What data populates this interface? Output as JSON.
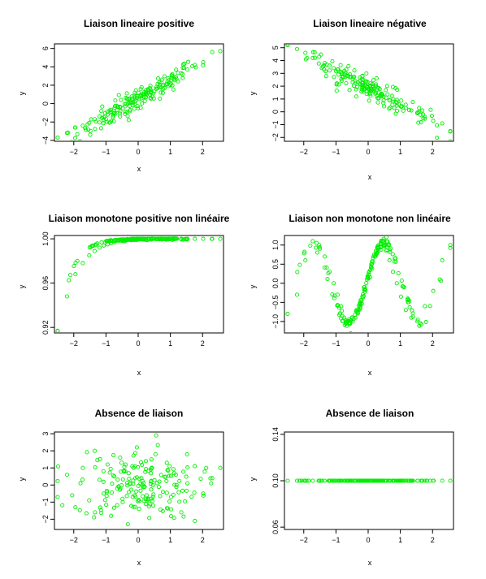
{
  "figure": {
    "point_color": "#00ee00",
    "background": "#ffffff"
  },
  "chart_data": [
    {
      "type": "scatter",
      "title": "Liaison lineaire positive",
      "xlabel": "x",
      "ylabel": "y",
      "xlim": [
        -2.6,
        2.65
      ],
      "ylim": [
        -4.1,
        6.5
      ],
      "xticks": [
        -2,
        -1,
        0,
        1,
        2
      ],
      "yticks": [
        -4,
        -2,
        0,
        2,
        4,
        6
      ],
      "relation": "linear",
      "params": {
        "slope": 2.0,
        "intercept": 0.5,
        "noise": 0.65
      },
      "x": [
        -2.5,
        -2.21,
        -1.95,
        -1.72,
        -1.52,
        -1.35,
        -1.2,
        -1.07,
        -0.95,
        -0.84,
        -0.74,
        -0.65,
        -0.56,
        -0.48,
        -0.4,
        -0.32,
        -0.25,
        -0.18,
        -0.11,
        -0.04,
        0.03,
        0.1,
        0.17,
        0.24,
        0.31,
        0.39,
        0.47,
        0.56,
        0.66,
        0.77,
        0.89,
        1.02,
        1.17,
        1.34,
        1.53,
        1.76,
        2.02,
        2.3,
        2.55
      ],
      "y": [
        -3.7,
        -3.2,
        -2.6,
        -2.4,
        -2.1,
        -1.7,
        -1.4,
        -1.5,
        -1.2,
        -0.9,
        -1.0,
        -0.7,
        -0.4,
        -0.5,
        -0.3,
        0.0,
        0.1,
        0.4,
        0.2,
        0.6,
        0.5,
        0.8,
        1.0,
        0.7,
        1.2,
        1.3,
        1.1,
        1.6,
        1.8,
        2.0,
        2.1,
        2.5,
        2.9,
        3.3,
        3.7,
        4.2,
        4.5,
        5.6,
        5.7
      ]
    },
    {
      "type": "scatter",
      "title": "Liaison lineaire négative",
      "xlabel": "x",
      "ylabel": "y",
      "xlim": [
        -2.6,
        2.65
      ],
      "ylim": [
        -2.3,
        5.3
      ],
      "xticks": [
        -2,
        -1,
        0,
        1,
        2
      ],
      "yticks": [
        -2,
        -1,
        0,
        1,
        2,
        3,
        4,
        5
      ],
      "relation": "linear",
      "params": {
        "slope": -1.3,
        "intercept": 1.9,
        "noise": 0.45
      },
      "x": [
        -2.5,
        -2.21,
        -1.95,
        -1.72,
        -1.52,
        -1.35,
        -1.2,
        -1.07,
        -0.95,
        -0.84,
        -0.74,
        -0.65,
        -0.56,
        -0.48,
        -0.4,
        -0.32,
        -0.25,
        -0.18,
        -0.11,
        -0.04,
        0.03,
        0.1,
        0.17,
        0.24,
        0.31,
        0.39,
        0.47,
        0.56,
        0.66,
        0.77,
        0.89,
        1.02,
        1.17,
        1.34,
        1.53,
        1.76,
        2.02,
        2.3,
        2.55
      ],
      "y": [
        5.2,
        4.9,
        4.6,
        4.2,
        4.3,
        3.8,
        3.6,
        3.4,
        3.3,
        3.1,
        2.9,
        2.8,
        2.7,
        2.6,
        2.4,
        2.3,
        2.2,
        2.1,
        2.0,
        1.9,
        1.8,
        1.7,
        1.6,
        1.5,
        1.5,
        1.3,
        1.2,
        1.1,
        0.9,
        0.8,
        0.7,
        0.4,
        0.3,
        0.1,
        -0.1,
        -0.4,
        -0.7,
        -0.9,
        -1.5
      ]
    },
    {
      "type": "scatter",
      "title": "Liaison monotone positive non linéaire",
      "xlabel": "x",
      "ylabel": "y",
      "xlim": [
        -2.6,
        2.65
      ],
      "ylim": [
        0.915,
        1.003
      ],
      "xticks": [
        -2,
        -1,
        0,
        1,
        2
      ],
      "yticks": [
        0.92,
        0.96,
        1.0
      ],
      "ytick_labels": [
        "0.92",
        "0.96",
        "1.00"
      ],
      "relation": "saturating",
      "params": {
        "a": 0.083,
        "k": 2.4,
        "x0": -2.5
      },
      "x": [
        -2.5,
        -2.21,
        -1.95,
        -1.72,
        -1.52,
        -1.35,
        -1.2,
        -1.07,
        -0.95,
        -0.84,
        -0.74,
        -0.65,
        -0.56,
        -0.48,
        -0.4,
        -0.32,
        -0.25,
        -0.18,
        -0.11,
        -0.04,
        0.03,
        0.1,
        0.17,
        0.24,
        0.31,
        0.39,
        0.47,
        0.56,
        0.66,
        0.77,
        0.89,
        1.02,
        1.17,
        1.34,
        1.53,
        1.76,
        2.02,
        2.3,
        2.55
      ],
      "y": [
        0.917,
        0.948,
        0.968,
        0.978,
        0.985,
        0.989,
        0.992,
        0.994,
        0.995,
        0.996,
        0.997,
        0.998,
        0.998,
        0.998,
        0.999,
        0.999,
        0.999,
        0.999,
        0.999,
        0.999,
        1.0,
        1.0,
        1.0,
        1.0,
        1.0,
        1.0,
        1.0,
        1.0,
        1.0,
        1.0,
        1.0,
        1.0,
        1.0,
        1.0,
        1.0,
        1.0,
        1.0,
        1.0,
        1.0
      ]
    },
    {
      "type": "scatter",
      "title": "Liaison non monotone non linéaire",
      "xlabel": "x",
      "ylabel": "y",
      "xlim": [
        -2.6,
        2.65
      ],
      "ylim": [
        -1.3,
        1.25
      ],
      "xticks": [
        -2,
        -1,
        0,
        1,
        2
      ],
      "yticks": [
        -1.0,
        -0.5,
        0.0,
        0.5,
        1.0
      ],
      "ytick_labels": [
        "-1.0",
        "-0.5",
        "0.0",
        "0.5",
        "1.0"
      ],
      "relation": "sine",
      "params": {
        "amp": 1.05,
        "period": 2.25,
        "phase": -0.05,
        "noise": 0.07
      },
      "x": [
        -2.5,
        -2.21,
        -1.95,
        -1.72,
        -1.52,
        -1.35,
        -1.2,
        -1.07,
        -0.95,
        -0.84,
        -0.74,
        -0.65,
        -0.56,
        -0.48,
        -0.4,
        -0.32,
        -0.25,
        -0.18,
        -0.11,
        -0.04,
        0.03,
        0.1,
        0.17,
        0.24,
        0.31,
        0.39,
        0.47,
        0.56,
        0.66,
        0.77,
        0.89,
        1.02,
        1.17,
        1.34,
        1.53,
        1.76,
        2.02,
        2.3,
        2.55
      ],
      "y": [
        -0.8,
        -0.3,
        0.6,
        1.1,
        1.0,
        0.7,
        0.3,
        0.0,
        -0.3,
        -0.6,
        -0.9,
        -1.0,
        -1.05,
        -1.0,
        -0.9,
        -0.75,
        -0.55,
        -0.35,
        -0.1,
        0.1,
        0.3,
        0.5,
        0.7,
        0.85,
        0.95,
        1.05,
        1.0,
        0.85,
        0.6,
        0.3,
        0.0,
        -0.35,
        -0.7,
        -0.9,
        -1.0,
        -0.6,
        -0.2,
        0.6,
        1.0
      ]
    },
    {
      "type": "scatter",
      "title": "Absence de liaison",
      "xlabel": "x",
      "ylabel": "y",
      "xlim": [
        -2.6,
        2.65
      ],
      "ylim": [
        -2.6,
        3.1
      ],
      "xticks": [
        -2,
        -1,
        0,
        1,
        2
      ],
      "yticks": [
        -2,
        -1,
        0,
        1,
        2,
        3
      ],
      "relation": "random",
      "params": {
        "sd": 1.0
      },
      "x": [
        -2.5,
        -2.21,
        -1.95,
        -1.72,
        -1.52,
        -1.35,
        -1.2,
        -1.07,
        -0.95,
        -0.84,
        -0.74,
        -0.65,
        -0.56,
        -0.48,
        -0.4,
        -0.32,
        -0.25,
        -0.18,
        -0.11,
        -0.04,
        0.03,
        0.1,
        0.17,
        0.24,
        0.31,
        0.39,
        0.47,
        0.56,
        0.66,
        0.77,
        0.89,
        1.02,
        1.17,
        1.34,
        1.53,
        1.76,
        2.02,
        2.3,
        2.55
      ],
      "y": [
        -0.7,
        0.6,
        -1.3,
        1.0,
        -0.9,
        2.0,
        0.3,
        -0.5,
        1.2,
        -1.8,
        0.5,
        -0.2,
        1.6,
        -1.0,
        0.8,
        -2.3,
        0.1,
        1.1,
        -0.6,
        2.2,
        -1.4,
        0.4,
        -0.1,
        1.4,
        -0.8,
        0.9,
        -1.2,
        2.9,
        0.2,
        -0.4,
        1.3,
        -0.7,
        0.6,
        -1.6,
        0.1,
        -2.1,
        -0.5,
        0.4,
        1.0
      ]
    },
    {
      "type": "scatter",
      "title": "Absence de liaison",
      "xlabel": "x",
      "ylabel": "y",
      "xlim": [
        -2.6,
        2.65
      ],
      "ylim": [
        0.058,
        0.142
      ],
      "xticks": [
        -2,
        -1,
        0,
        1,
        2
      ],
      "yticks": [
        0.06,
        0.1,
        0.14
      ],
      "ytick_labels": [
        "0.06",
        "0.10",
        "0.14"
      ],
      "relation": "constant",
      "params": {
        "value": 0.1
      },
      "x": [
        -2.5,
        -2.21,
        -1.95,
        -1.72,
        -1.52,
        -1.35,
        -1.2,
        -1.07,
        -0.95,
        -0.84,
        -0.74,
        -0.65,
        -0.56,
        -0.48,
        -0.4,
        -0.32,
        -0.25,
        -0.18,
        -0.11,
        -0.04,
        0.03,
        0.1,
        0.17,
        0.24,
        0.31,
        0.39,
        0.47,
        0.56,
        0.66,
        0.77,
        0.89,
        1.02,
        1.17,
        1.34,
        1.53,
        1.76,
        2.02,
        2.3,
        2.55
      ],
      "y": [
        0.1,
        0.1,
        0.1,
        0.1,
        0.1,
        0.1,
        0.1,
        0.1,
        0.1,
        0.1,
        0.1,
        0.1,
        0.1,
        0.1,
        0.1,
        0.1,
        0.1,
        0.1,
        0.1,
        0.1,
        0.1,
        0.1,
        0.1,
        0.1,
        0.1,
        0.1,
        0.1,
        0.1,
        0.1,
        0.1,
        0.1,
        0.1,
        0.1,
        0.1,
        0.1,
        0.1,
        0.1,
        0.1,
        0.1
      ]
    }
  ]
}
